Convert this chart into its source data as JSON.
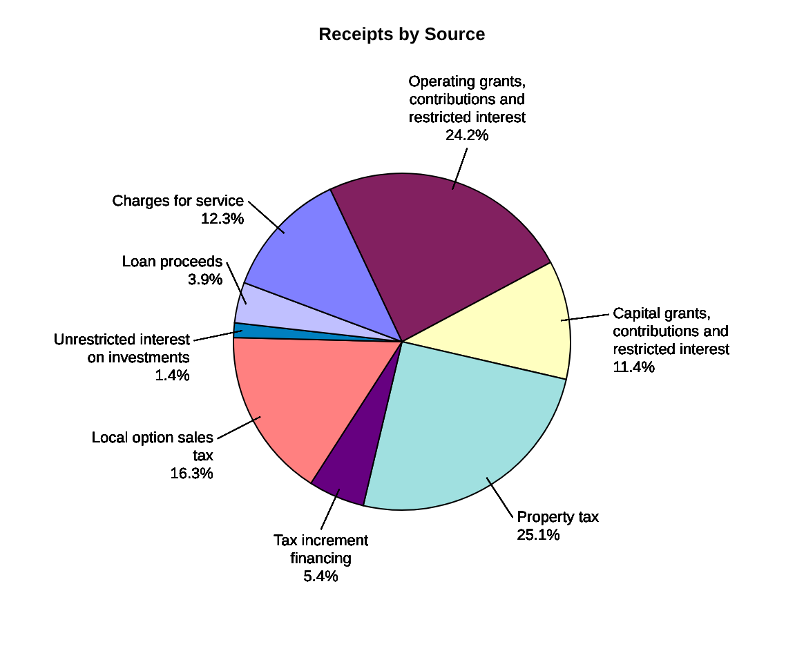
{
  "chart_data": {
    "type": "pie",
    "title": "Receipts by Source",
    "categories": [
      "Operating grants, contributions and restricted interest",
      "Capital grants, contributions and restricted interest",
      "Property tax",
      "Tax increment financing",
      "Local option sales tax",
      "Unrestricted interest on investments",
      "Loan proceeds",
      "Charges for service"
    ],
    "values": [
      24.2,
      11.4,
      25.1,
      5.4,
      16.3,
      1.4,
      3.9,
      12.3
    ],
    "value_labels": [
      "24.2%",
      "11.4%",
      "25.1%",
      "5.4%",
      "16.3%",
      "1.4%",
      "3.9%",
      "12.3%"
    ],
    "colors": [
      "#822060",
      "#ffffc0",
      "#a0e0e0",
      "#660080",
      "#ff8080",
      "#0080c0",
      "#c0c0ff",
      "#8080ff"
    ]
  }
}
